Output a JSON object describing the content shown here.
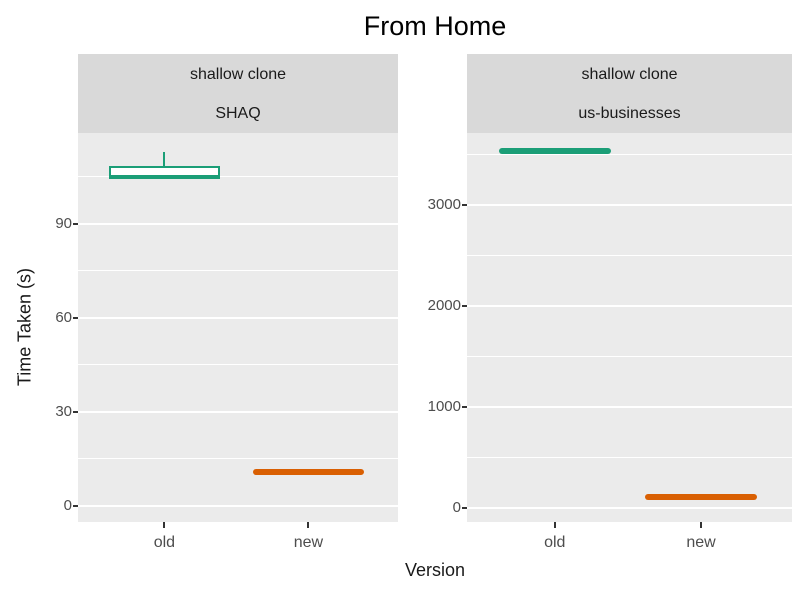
{
  "title": "From Home",
  "x_axis_title": "Version",
  "y_axis_title": "Time Taken (s)",
  "colors": {
    "old": "#1B9E77",
    "new": "#D95F02",
    "strip_bg": "#D9D9D9",
    "panel_bg": "#EBEBEB",
    "grid": "#FFFFFF",
    "tick_mark": "#333333",
    "tick_text": "#4D4D4D",
    "text": "#1A1A1A"
  },
  "chart_data": {
    "type": "boxplot",
    "title": "From Home",
    "xlabel": "Version",
    "ylabel": "Time Taken (s)",
    "grid": "on",
    "legend": "none",
    "facets": [
      {
        "strip_line1": "shallow clone",
        "strip_line2": "SHAQ",
        "categories": [
          "old",
          "new"
        ],
        "y_ticks": [
          0,
          30,
          60,
          90
        ],
        "y_minor_ticks": [
          15,
          45,
          75,
          105
        ],
        "ylim": [
          -5.1,
          119
        ],
        "boxes": [
          {
            "category": "old",
            "color_key": "old",
            "flat": false,
            "whisker_low": 104.3,
            "q1": 104.3,
            "median": 105.2,
            "q3": 108.5,
            "whisker_high": 113
          },
          {
            "category": "new",
            "color_key": "new",
            "flat": true,
            "whisker_low": 11,
            "q1": 11,
            "median": 11,
            "q3": 11,
            "whisker_high": 11
          }
        ]
      },
      {
        "strip_line1": "shallow clone",
        "strip_line2": "us-businesses",
        "categories": [
          "old",
          "new"
        ],
        "y_ticks": [
          0,
          1000,
          2000,
          3000
        ],
        "y_minor_ticks": [
          500,
          1500,
          2500,
          3500
        ],
        "ylim": [
          -139,
          3713
        ],
        "boxes": [
          {
            "category": "old",
            "color_key": "old",
            "flat": true,
            "whisker_low": 3530,
            "q1": 3530,
            "median": 3530,
            "q3": 3530,
            "whisker_high": 3530
          },
          {
            "category": "new",
            "color_key": "new",
            "flat": true,
            "whisker_low": 110,
            "q1": 110,
            "median": 110,
            "q3": 110,
            "whisker_high": 110
          }
        ]
      }
    ]
  }
}
